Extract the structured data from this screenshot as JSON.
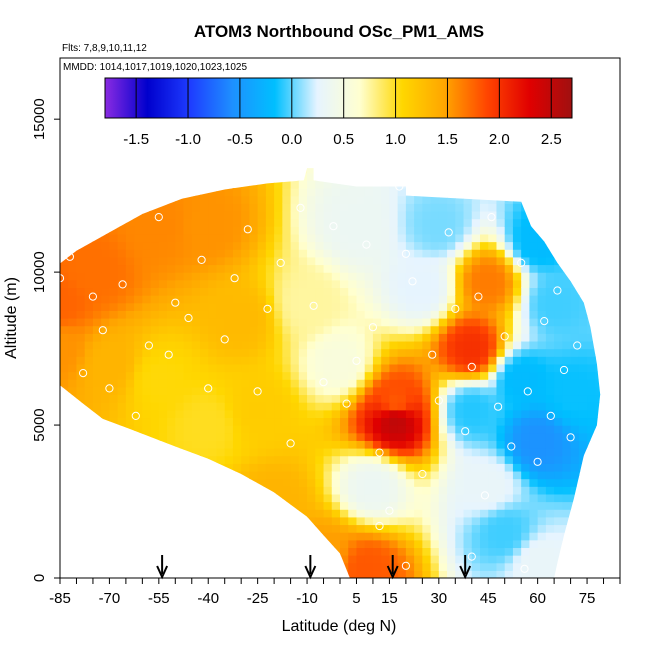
{
  "chart_data": {
    "type": "heatmap",
    "title": "ATOM3 Northbound OSc_PM1_AMS",
    "flights_label": "Flts: 7,8,9,10,11,12",
    "dates_label": "MMDD: 1014,1017,1019,1020,1023,1025",
    "xlabel": "Latitude (deg N)",
    "ylabel": "Altitude (m)",
    "xlim": [
      -85,
      85
    ],
    "ylim": [
      0,
      17000
    ],
    "x_tick_labels": [
      "-85",
      "-70",
      "-55",
      "-40",
      "-25",
      "-10",
      "5",
      "15",
      "30",
      "45",
      "60",
      "75"
    ],
    "x_ticks": [
      -85,
      -70,
      -55,
      -40,
      -25,
      -10,
      5,
      15,
      30,
      45,
      60,
      75
    ],
    "y_ticks": [
      0,
      5000,
      10000,
      15000
    ],
    "y_tick_labels": [
      "0",
      "5000",
      "10000",
      "15000"
    ],
    "colorbar": {
      "range": [
        -1.8,
        2.7
      ],
      "tick_values": [
        -1.5,
        -1.0,
        -0.5,
        0.0,
        0.5,
        1.0,
        1.5,
        2.0,
        2.5
      ],
      "tick_labels": [
        "-1.5",
        "-1.0",
        "-0.5",
        "0.0",
        "0.5",
        "1.0",
        "1.5",
        "2.0",
        "2.5"
      ],
      "colors": [
        "#8a2be2",
        "#0000cd",
        "#1e3cff",
        "#1e90ff",
        "#00bfff",
        "#e6f4ff",
        "#ffffd0",
        "#ffd700",
        "#ffa500",
        "#ff4500",
        "#e00000",
        "#a01010"
      ]
    },
    "arrow_latitudes": [
      -54,
      -9,
      16,
      38
    ],
    "domain_outline": [
      [
        -92,
        7800
      ],
      [
        -90,
        9200
      ],
      [
        -86,
        10200
      ],
      [
        -80,
        10700
      ],
      [
        -70,
        11300
      ],
      [
        -60,
        11900
      ],
      [
        -48,
        12400
      ],
      [
        -35,
        12700
      ],
      [
        -22,
        12900
      ],
      [
        -11,
        13000
      ],
      [
        -10,
        13400
      ],
      [
        -8,
        13400
      ],
      [
        -8,
        13000
      ],
      [
        5,
        12800
      ],
      [
        20,
        12800
      ],
      [
        20,
        12500
      ],
      [
        55,
        12300
      ],
      [
        58,
        11500
      ],
      [
        62,
        11000
      ],
      [
        66,
        10300
      ],
      [
        70,
        9700
      ],
      [
        74,
        9000
      ],
      [
        76,
        8200
      ],
      [
        78,
        7000
      ],
      [
        79,
        6000
      ],
      [
        78,
        5000
      ],
      [
        74,
        4000
      ],
      [
        71,
        2600
      ],
      [
        68,
        1400
      ],
      [
        66,
        500
      ],
      [
        65,
        0
      ],
      [
        3,
        0
      ],
      [
        0,
        800
      ],
      [
        -5,
        1400
      ],
      [
        -10,
        2000
      ],
      [
        -20,
        2800
      ],
      [
        -30,
        3400
      ],
      [
        -40,
        3900
      ],
      [
        -50,
        4300
      ],
      [
        -62,
        4800
      ],
      [
        -72,
        5200
      ],
      [
        -78,
        5700
      ],
      [
        -85,
        6300
      ],
      [
        -89,
        7000
      ]
    ],
    "field_values": [
      {
        "lat": -85,
        "alt": 9000,
        "value": 1.75
      },
      {
        "lat": -75,
        "alt": 10000,
        "value": 1.7
      },
      {
        "lat": -85,
        "alt": 7500,
        "value": 1.55
      },
      {
        "lat": -70,
        "alt": 7000,
        "value": 1.35
      },
      {
        "lat": -55,
        "alt": 6500,
        "value": 1.05
      },
      {
        "lat": -40,
        "alt": 11500,
        "value": 1.55
      },
      {
        "lat": -55,
        "alt": 11500,
        "value": 1.6
      },
      {
        "lat": -30,
        "alt": 8500,
        "value": 1.3
      },
      {
        "lat": -25,
        "alt": 5500,
        "value": 1.15
      },
      {
        "lat": -40,
        "alt": 5000,
        "value": 1.0
      },
      {
        "lat": -20,
        "alt": 2500,
        "value": 1.35
      },
      {
        "lat": -5,
        "alt": 800,
        "value": 1.5
      },
      {
        "lat": -10,
        "alt": 9000,
        "value": 0.75
      },
      {
        "lat": 0,
        "alt": 7000,
        "value": 0.55
      },
      {
        "lat": 5,
        "alt": 11500,
        "value": 0.35
      },
      {
        "lat": 10,
        "alt": 3000,
        "value": 0.35
      },
      {
        "lat": 17,
        "alt": 5200,
        "value": 2.5
      },
      {
        "lat": 17,
        "alt": 5700,
        "value": 1.8
      },
      {
        "lat": 25,
        "alt": 9500,
        "value": 0.25
      },
      {
        "lat": 30,
        "alt": 11500,
        "value": 0.05
      },
      {
        "lat": 40,
        "alt": 7500,
        "value": 2.0
      },
      {
        "lat": 45,
        "alt": 9700,
        "value": 1.65
      },
      {
        "lat": 40,
        "alt": 5500,
        "value": -0.1
      },
      {
        "lat": 45,
        "alt": 3000,
        "value": 0.3
      },
      {
        "lat": 55,
        "alt": 6500,
        "value": -0.2
      },
      {
        "lat": 60,
        "alt": 4500,
        "value": -0.55
      },
      {
        "lat": 60,
        "alt": 11000,
        "value": -0.2
      },
      {
        "lat": 65,
        "alt": 9000,
        "value": -0.05
      },
      {
        "lat": 70,
        "alt": 6000,
        "value": -0.15
      },
      {
        "lat": 50,
        "alt": 1500,
        "value": -0.05
      },
      {
        "lat": 60,
        "alt": 500,
        "value": 0.3
      },
      {
        "lat": 8,
        "alt": 300,
        "value": 1.8
      }
    ],
    "sample_points": [
      [
        -88,
        7800
      ],
      [
        -85,
        9800
      ],
      [
        -82,
        10500
      ],
      [
        -78,
        6700
      ],
      [
        -75,
        9200
      ],
      [
        -72,
        8100
      ],
      [
        -70,
        6200
      ],
      [
        -66,
        9600
      ],
      [
        -62,
        5300
      ],
      [
        -58,
        7600
      ],
      [
        -55,
        11800
      ],
      [
        -52,
        7300
      ],
      [
        -50,
        9000
      ],
      [
        -46,
        8500
      ],
      [
        -42,
        10400
      ],
      [
        -40,
        6200
      ],
      [
        -35,
        7800
      ],
      [
        -32,
        9800
      ],
      [
        -28,
        11400
      ],
      [
        -25,
        6100
      ],
      [
        -22,
        8800
      ],
      [
        -18,
        10300
      ],
      [
        -15,
        4400
      ],
      [
        -12,
        12100
      ],
      [
        -8,
        8900
      ],
      [
        -5,
        6400
      ],
      [
        -2,
        11500
      ],
      [
        2,
        5700
      ],
      [
        5,
        7100
      ],
      [
        8,
        10900
      ],
      [
        10,
        8200
      ],
      [
        12,
        4100
      ],
      [
        15,
        2200
      ],
      [
        18,
        12800
      ],
      [
        20,
        10600
      ],
      [
        22,
        9700
      ],
      [
        25,
        3400
      ],
      [
        28,
        7300
      ],
      [
        30,
        5800
      ],
      [
        33,
        11300
      ],
      [
        35,
        8800
      ],
      [
        38,
        4800
      ],
      [
        40,
        6900
      ],
      [
        42,
        9200
      ],
      [
        44,
        2700
      ],
      [
        46,
        11800
      ],
      [
        48,
        5600
      ],
      [
        50,
        7900
      ],
      [
        52,
        4300
      ],
      [
        55,
        10300
      ],
      [
        57,
        6100
      ],
      [
        60,
        3800
      ],
      [
        62,
        8400
      ],
      [
        64,
        5300
      ],
      [
        66,
        9400
      ],
      [
        68,
        6800
      ],
      [
        70,
        4600
      ],
      [
        72,
        7600
      ],
      [
        56,
        300
      ],
      [
        40,
        700
      ],
      [
        20,
        400
      ],
      [
        12,
        1700
      ]
    ]
  }
}
